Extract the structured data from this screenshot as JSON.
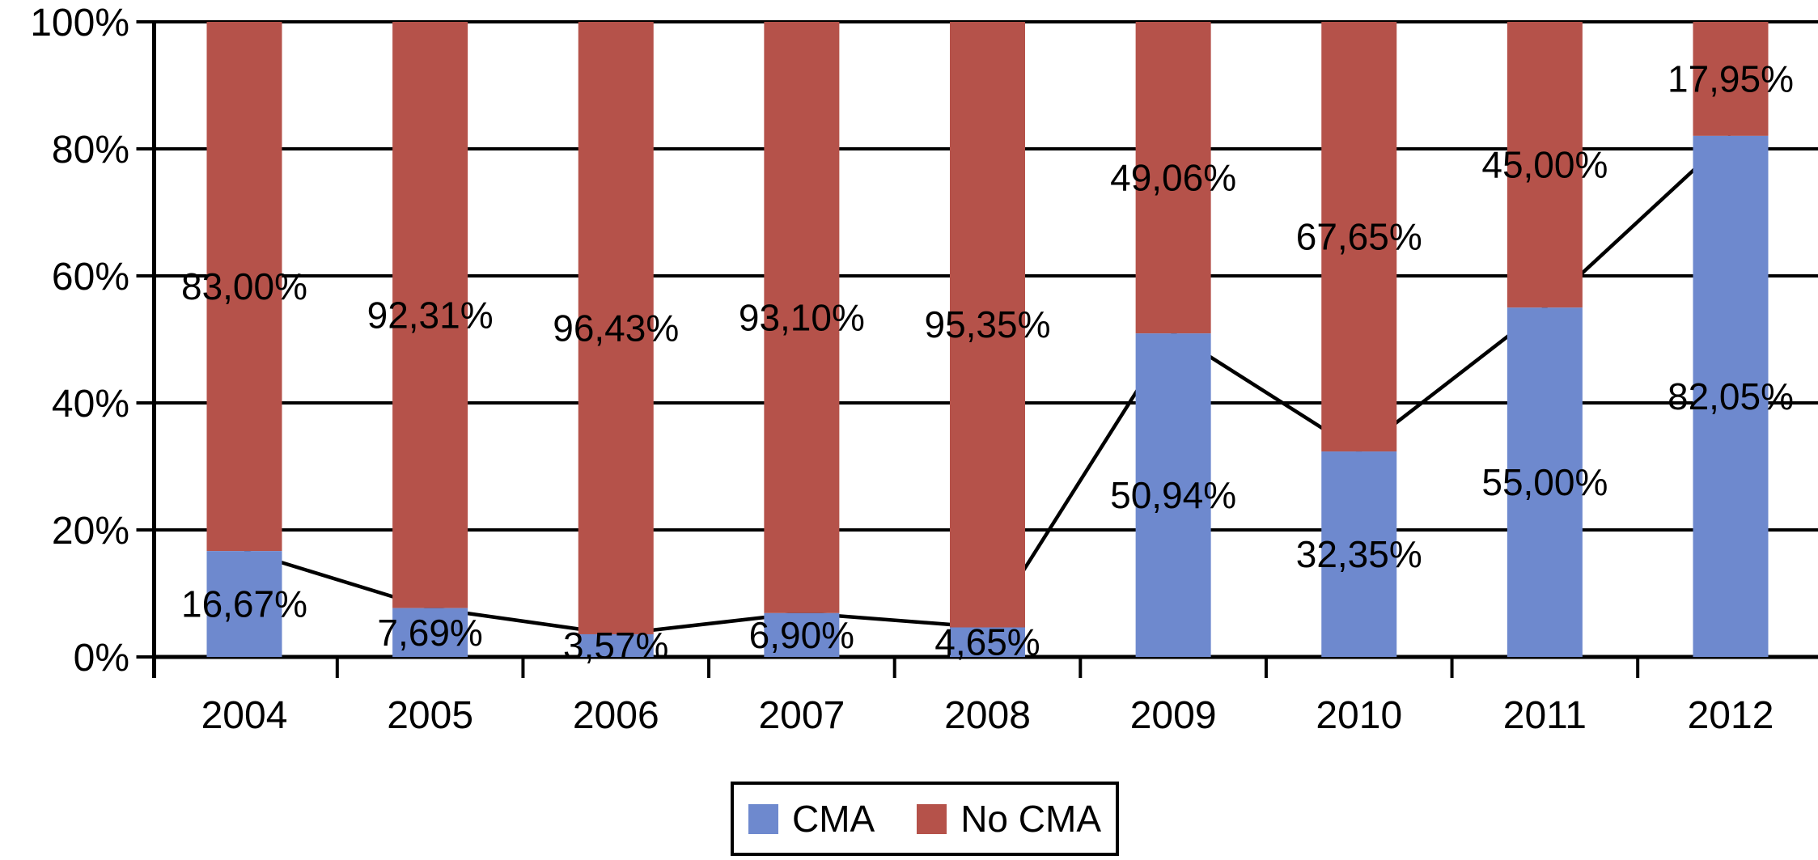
{
  "chart_data": {
    "type": "bar",
    "variant": "stacked-percent-with-line-overlay",
    "title": "",
    "xlabel": "",
    "ylabel": "",
    "categories": [
      "2004",
      "2005",
      "2006",
      "2007",
      "2008",
      "2009",
      "2010",
      "2011",
      "2012"
    ],
    "series": [
      {
        "name": "CMA",
        "color": "#6E89CE",
        "values": [
          16.67,
          7.69,
          3.57,
          6.9,
          4.65,
          50.94,
          32.35,
          55.0,
          82.05
        ],
        "labels": [
          "16,67%",
          "7,69%",
          "3,57%",
          "6,90%",
          "4,65%",
          "50,94%",
          "32,35%",
          "55,00%",
          "82,05%"
        ]
      },
      {
        "name": "No CMA",
        "color": "#B5524A",
        "values": [
          83.0,
          92.31,
          96.43,
          93.1,
          95.35,
          49.06,
          67.65,
          45.0,
          17.95
        ],
        "labels": [
          "83,00%",
          "92,31%",
          "96,43%",
          "93,10%",
          "95,35%",
          "49,06%",
          "67,65%",
          "45,00%",
          "17,95%"
        ]
      }
    ],
    "line_overlay": {
      "follows_series": "CMA",
      "color": "#000000"
    },
    "y_ticks": [
      "0%",
      "20%",
      "40%",
      "60%",
      "80%",
      "100%"
    ],
    "ylim": [
      0,
      100
    ],
    "grid": true,
    "axis_color": "#000000",
    "legend_position": "bottom"
  },
  "legend": {
    "items": [
      {
        "label": "CMA",
        "color": "#6E89CE"
      },
      {
        "label": "No CMA",
        "color": "#B5524A"
      }
    ]
  }
}
